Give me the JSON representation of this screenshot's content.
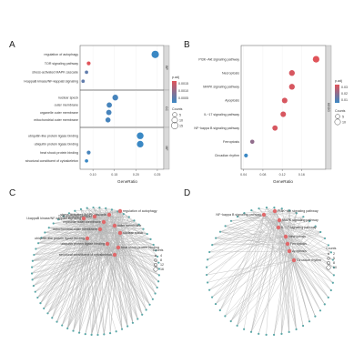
{
  "panels": {
    "a": {
      "label": "A",
      "chart_data": {
        "type": "scatter",
        "xlabel": "GeneRatio",
        "xlim": [
          0.07,
          0.265
        ],
        "xticks": [
          "0.10",
          "0.15",
          "0.20",
          "0.25"
        ],
        "xtick_values": [
          0.1,
          0.15,
          0.2,
          0.25
        ],
        "facets": [
          {
            "name": "BP",
            "terms": [
              {
                "term": "regulation of autophagy",
                "x": 0.245,
                "count": 19,
                "p": 0.0002
              },
              {
                "term": "TOR signaling pathway",
                "x": 0.09,
                "count": 3,
                "p": 0.0015
              },
              {
                "term": "stress-activated MAPK cascade",
                "x": 0.085,
                "count": 2,
                "p": 0.0005
              },
              {
                "term": "I-kappaB kinase/NF-kappaB signaling",
                "x": 0.077,
                "count": 2,
                "p": 0.0005
              }
            ]
          },
          {
            "name": "CC",
            "terms": [
              {
                "term": "nuclear speck",
                "x": 0.152,
                "count": 10,
                "p": 0.0003
              },
              {
                "term": "outer membrane",
                "x": 0.138,
                "count": 8,
                "p": 0.0003
              },
              {
                "term": "organelle outer membrane",
                "x": 0.137,
                "count": 8,
                "p": 0.0003
              },
              {
                "term": "mitochondrial outer membrane",
                "x": 0.135,
                "count": 7,
                "p": 0.0003
              }
            ]
          },
          {
            "name": "MF",
            "terms": [
              {
                "term": "ubiquitin-like protein ligase binding",
                "x": 0.21,
                "count": 15,
                "p": 0.0002
              },
              {
                "term": "ubiquitin protein ligase binding",
                "x": 0.21,
                "count": 14,
                "p": 0.0002
              },
              {
                "term": "heat shock protein binding",
                "x": 0.09,
                "count": 3,
                "p": 0.0003
              },
              {
                "term": "structural constituent of cytoskeleton",
                "x": 0.085,
                "count": 2,
                "p": 0.0002
              }
            ]
          }
        ],
        "legend": {
          "color_title": "p.adj",
          "color_ticks": [
            "0.0015",
            "0.0010",
            "0.0005"
          ],
          "size_title": "Counts",
          "size_values": [
            "5",
            "10",
            "15"
          ],
          "high_color": "#e0545a",
          "low_color": "#3a88c4"
        }
      }
    },
    "b": {
      "label": "B",
      "chart_data": {
        "type": "scatter",
        "xlabel": "GeneRatio",
        "xlim": [
          0.035,
          0.21
        ],
        "xticks": [
          "0.04",
          "0.08",
          "0.12",
          "0.16"
        ],
        "xtick_values": [
          0.04,
          0.08,
          0.12,
          0.16
        ],
        "facet": "KEGG",
        "terms": [
          {
            "term": "PI3K−Akt signaling pathway",
            "x": 0.19,
            "count": 14,
            "p": 0.001
          },
          {
            "term": "Necroptosis",
            "x": 0.14,
            "count": 10,
            "p": 0.002
          },
          {
            "term": "MAPK signaling pathway",
            "x": 0.14,
            "count": 10,
            "p": 0.002
          },
          {
            "term": "Apoptosis",
            "x": 0.125,
            "count": 9,
            "p": 0.002
          },
          {
            "term": "IL−17 signaling pathway",
            "x": 0.122,
            "count": 9,
            "p": 0.002
          },
          {
            "term": "NF−kappa B signaling pathway",
            "x": 0.105,
            "count": 8,
            "p": 0.002
          },
          {
            "term": "Ferroptosis",
            "x": 0.058,
            "count": 4,
            "p": 0.01
          },
          {
            "term": "Circadian rhythm",
            "x": 0.045,
            "count": 3,
            "p": 0.02
          }
        ],
        "legend": {
          "color_title": "p.adj",
          "color_ticks": [
            "0.03",
            "0.02",
            "0.01"
          ],
          "size_title": "Counts",
          "size_values": [
            "5",
            "10"
          ],
          "high_color": "#e0545a",
          "low_color": "#3a88c4"
        }
      }
    },
    "c": {
      "label": "C",
      "terms": [
        "regulation of autophagy",
        "stress-activated MAPK cascade",
        "TOR signaling pathway",
        "I-kappaB kinase/NF-kappaB signaling",
        "organelle outer membrane",
        "outer membrane",
        "mitochondrial outer membrane",
        "nuclear speck",
        "ubiquitin-like protein ligase binding",
        "ubiquitin protein ligase binding",
        "structural constituent of cytoskeleton",
        "heat shock protein binding"
      ],
      "legend": {
        "title": "Counts",
        "values": [
          "4",
          "8",
          "12",
          "16"
        ]
      }
    },
    "d": {
      "label": "D",
      "terms": [
        "PI3K−Akt signaling pathway",
        "NF−kappa B signaling pathway",
        "MAPK signaling pathway",
        "IL−17 signaling pathway",
        "Necroptosis",
        "Ferroptosis",
        "Circadian rhythm",
        "Apoptosis"
      ],
      "legend": {
        "title": "Counts",
        "values": [
          "2",
          "5",
          "8",
          "10"
        ]
      }
    }
  }
}
